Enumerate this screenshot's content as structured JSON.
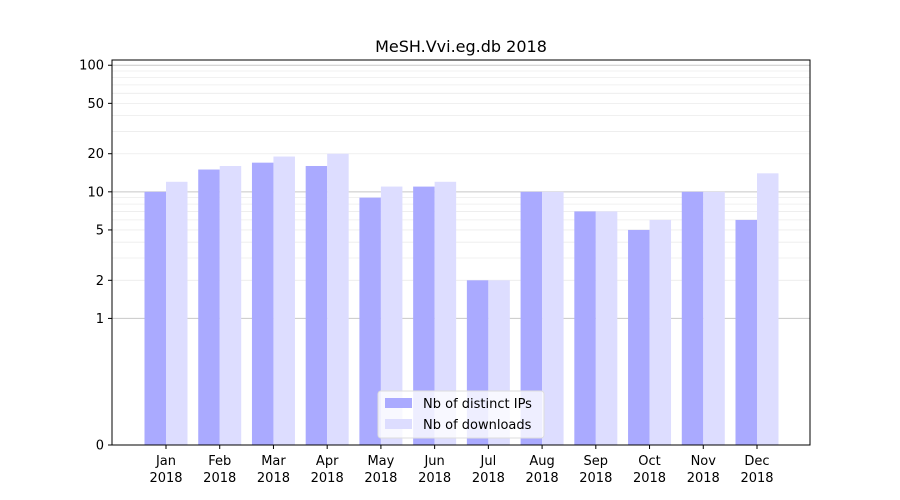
{
  "chart_data": {
    "type": "bar",
    "title": "MeSH.Vvi.eg.db 2018",
    "xlabel": "",
    "ylabel": "",
    "y_scale": "symlog",
    "ylim": [
      0,
      110
    ],
    "y_ticks": [
      0,
      1,
      2,
      5,
      10,
      20,
      50,
      100
    ],
    "grid": true,
    "legend_position": "bottom-center",
    "categories": [
      [
        "Jan",
        "2018"
      ],
      [
        "Feb",
        "2018"
      ],
      [
        "Mar",
        "2018"
      ],
      [
        "Apr",
        "2018"
      ],
      [
        "May",
        "2018"
      ],
      [
        "Jun",
        "2018"
      ],
      [
        "Jul",
        "2018"
      ],
      [
        "Aug",
        "2018"
      ],
      [
        "Sep",
        "2018"
      ],
      [
        "Oct",
        "2018"
      ],
      [
        "Nov",
        "2018"
      ],
      [
        "Dec",
        "2018"
      ]
    ],
    "series": [
      {
        "name": "Nb of distinct IPs",
        "color": "#aaaaff",
        "values": [
          10,
          15,
          17,
          16,
          9,
          11,
          2,
          10,
          7,
          5,
          10,
          6
        ]
      },
      {
        "name": "Nb of downloads",
        "color": "#ddddff",
        "values": [
          12,
          16,
          19,
          20,
          11,
          12,
          2,
          10,
          7,
          6,
          10,
          14
        ]
      }
    ]
  }
}
